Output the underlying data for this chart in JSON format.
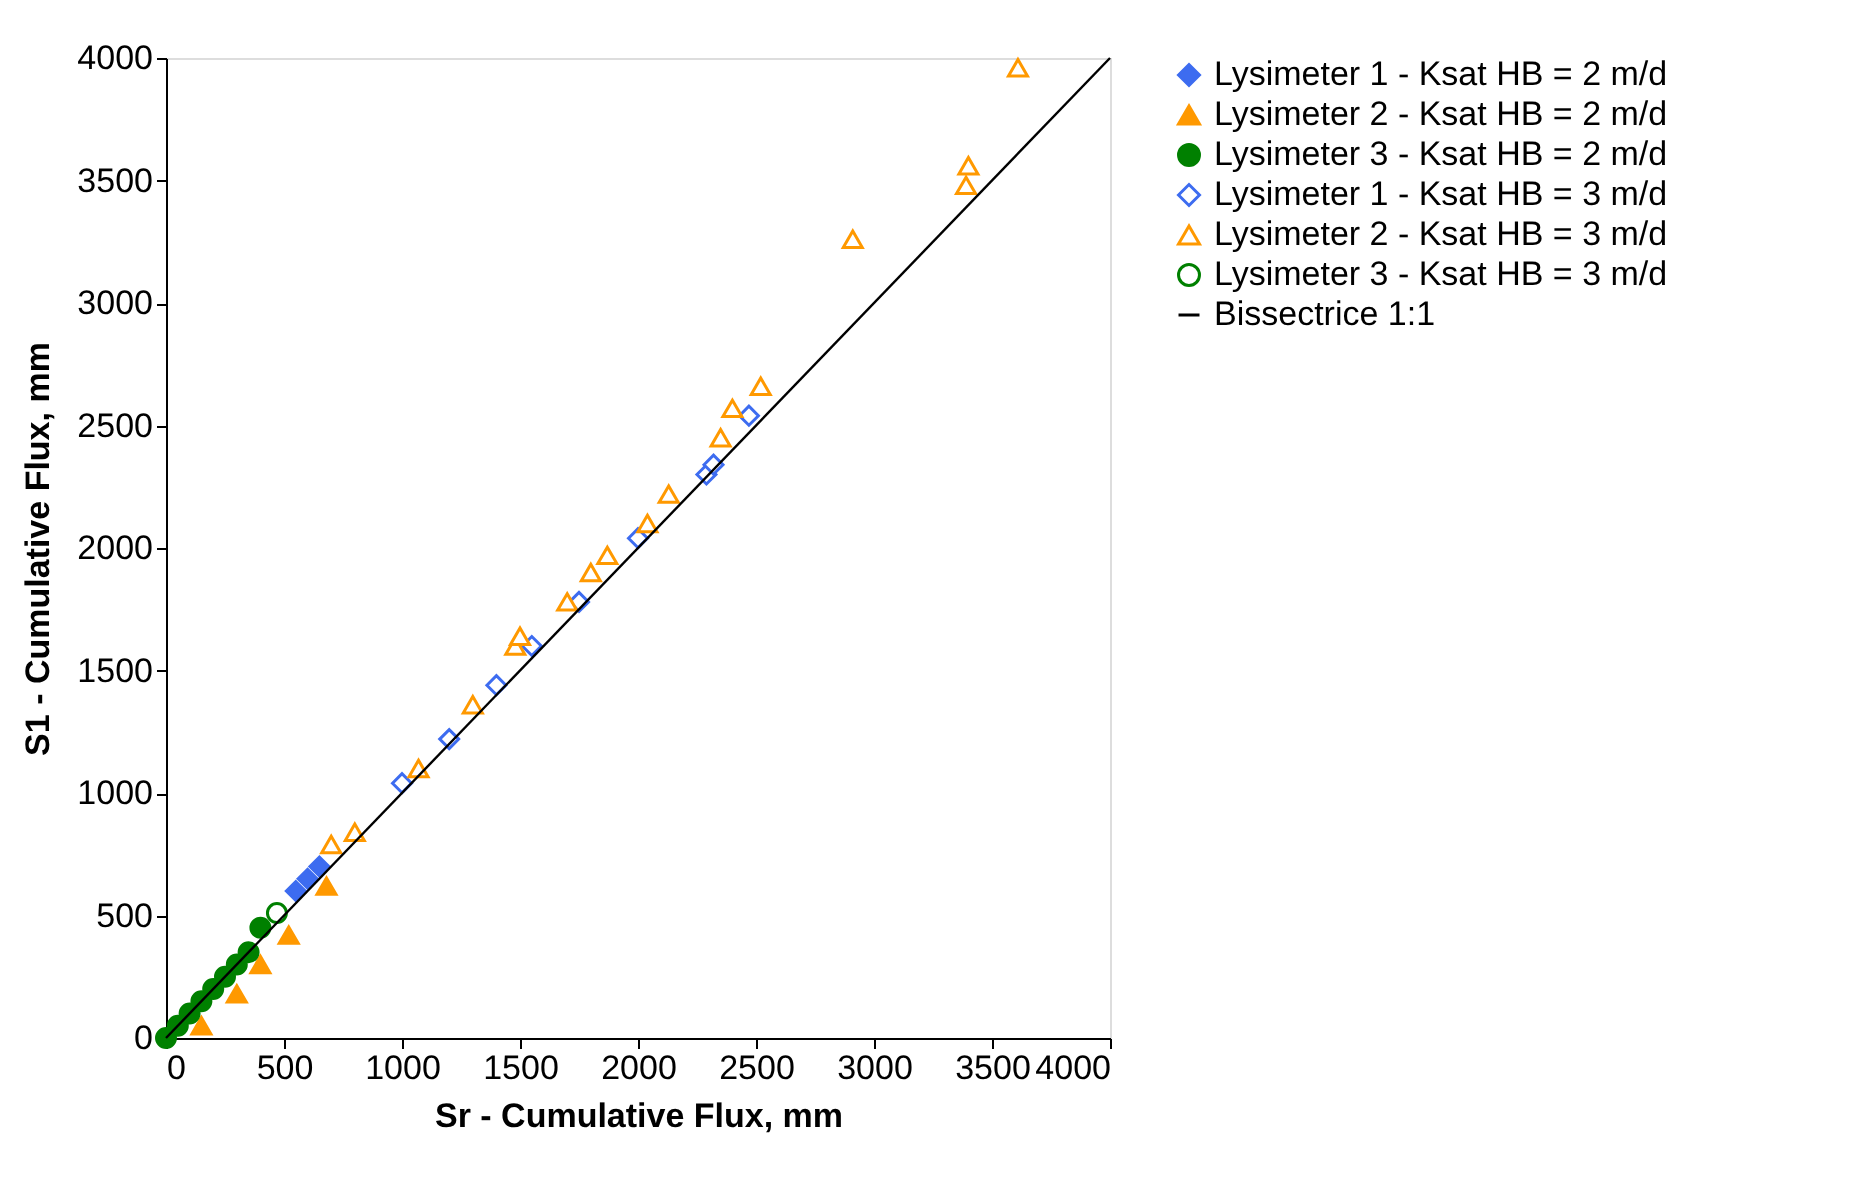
{
  "chart_data": {
    "type": "scatter",
    "xlabel": "Sr - Cumulative Flux, mm",
    "ylabel": "S1 - Cumulative Flux, mm",
    "xlim": [
      0,
      4000
    ],
    "ylim": [
      0,
      4000
    ],
    "xticks": [
      0,
      500,
      1000,
      1500,
      2000,
      2500,
      3000,
      3500,
      4000
    ],
    "yticks": [
      0,
      500,
      1000,
      1500,
      2000,
      2500,
      3000,
      3500,
      4000
    ],
    "grid": false,
    "legend": "right",
    "series": [
      {
        "name": "Lysimeter 1 - Ksat HB = 2 m/d",
        "color": "#3d6cf0",
        "marker": "diamond",
        "x": [
          550,
          600,
          650
        ],
        "values": [
          600,
          650,
          700
        ]
      },
      {
        "name": "Lysimeter 2 - Ksat HB = 2 m/d",
        "color": "#ff9900",
        "marker": "triangle",
        "x": [
          150,
          300,
          400,
          520,
          680
        ],
        "values": [
          50,
          180,
          300,
          420,
          620
        ]
      },
      {
        "name": "Lysimeter 3 - Ksat HB = 2 m/d",
        "color": "#008000",
        "marker": "circle",
        "x": [
          0,
          50,
          100,
          150,
          200,
          250,
          300,
          350,
          400
        ],
        "values": [
          0,
          50,
          100,
          150,
          200,
          250,
          300,
          350,
          450
        ]
      },
      {
        "name": "Lysimeter 1 - Ksat HB = 3 m/d",
        "color": "#3d6cf0",
        "marker": "diamond",
        "x": [
          1000,
          1200,
          1400,
          1550,
          1750,
          2000,
          2290,
          2320,
          2470
        ],
        "values": [
          1040,
          1220,
          1440,
          1600,
          1780,
          2040,
          2300,
          2340,
          2540
        ]
      },
      {
        "name": "Lysimeter 2 - Ksat HB = 3 m/d",
        "color": "#ff9900",
        "marker": "triangle",
        "x": [
          700,
          800,
          1070,
          1300,
          1480,
          1500,
          1700,
          1800,
          1870,
          2040,
          2130,
          2350,
          2400,
          2520,
          2910,
          3390,
          3400,
          3610
        ],
        "values": [
          790,
          840,
          1100,
          1360,
          1600,
          1640,
          1780,
          1900,
          1970,
          2100,
          2220,
          2450,
          2570,
          2660,
          3260,
          3480,
          3560,
          3960
        ]
      },
      {
        "name": "Lysimeter 3 - Ksat HB = 3 m/d",
        "color": "#008000",
        "marker": "circle",
        "x": [
          470
        ],
        "values": [
          510
        ]
      },
      {
        "name": "Bissectrice 1:1",
        "type": "line",
        "color": "#000000",
        "line_style": "solid",
        "x": [
          0,
          4000
        ],
        "values": [
          0,
          4000
        ]
      }
    ]
  }
}
